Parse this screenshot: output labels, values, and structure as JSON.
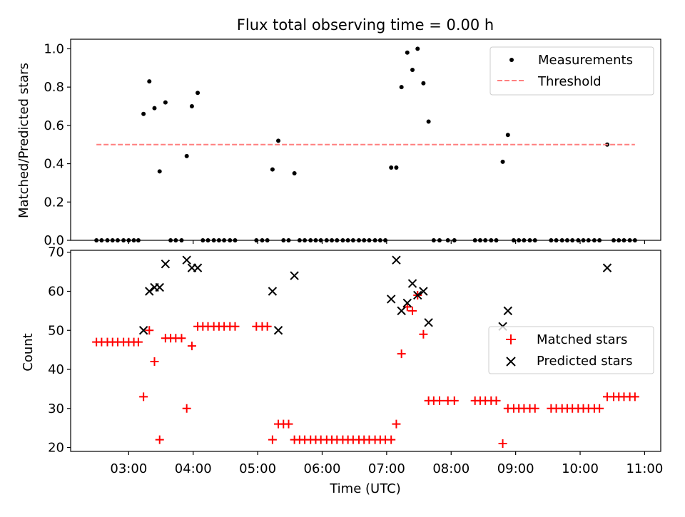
{
  "chart_data": [
    {
      "type": "scatter",
      "title": "Flux total observing time = 0.00 h",
      "xlabel": "",
      "ylabel": "Matched/Predicted stars",
      "ylim": [
        0,
        1.05
      ],
      "yticks": [
        0.0,
        0.2,
        0.4,
        0.6,
        0.8,
        1.0
      ],
      "ytick_labels": [
        "0.0",
        "0.2",
        "0.4",
        "0.6",
        "0.8",
        "1.0"
      ],
      "x_unit": "hours UTC",
      "xlim": [
        2.1,
        11.25
      ],
      "legend_placement": "top-right",
      "series": [
        {
          "name": "Measurements",
          "color": "#000000",
          "marker": "dot",
          "points": [
            [
              2.5,
              0
            ],
            [
              2.58,
              0
            ],
            [
              2.67,
              0
            ],
            [
              2.75,
              0
            ],
            [
              2.83,
              0
            ],
            [
              2.92,
              0
            ],
            [
              3.0,
              0
            ],
            [
              3.08,
              0
            ],
            [
              3.15,
              0
            ],
            [
              3.23,
              0.66
            ],
            [
              3.32,
              0.83
            ],
            [
              3.4,
              0.69
            ],
            [
              3.48,
              0.36
            ],
            [
              3.57,
              0.72
            ],
            [
              3.65,
              0
            ],
            [
              3.73,
              0
            ],
            [
              3.82,
              0
            ],
            [
              3.9,
              0.44
            ],
            [
              3.98,
              0.7
            ],
            [
              4.07,
              0.77
            ],
            [
              4.15,
              0
            ],
            [
              4.23,
              0
            ],
            [
              4.32,
              0
            ],
            [
              4.4,
              0
            ],
            [
              4.48,
              0
            ],
            [
              4.57,
              0
            ],
            [
              4.65,
              0
            ],
            [
              4.98,
              0
            ],
            [
              5.07,
              0
            ],
            [
              5.15,
              0
            ],
            [
              5.23,
              0.37
            ],
            [
              5.32,
              0.52
            ],
            [
              5.4,
              0
            ],
            [
              5.48,
              0
            ],
            [
              5.57,
              0.35
            ],
            [
              5.65,
              0
            ],
            [
              5.73,
              0
            ],
            [
              5.82,
              0
            ],
            [
              5.9,
              0
            ],
            [
              5.98,
              0
            ],
            [
              6.07,
              0
            ],
            [
              6.15,
              0
            ],
            [
              6.23,
              0
            ],
            [
              6.32,
              0
            ],
            [
              6.4,
              0
            ],
            [
              6.48,
              0
            ],
            [
              6.57,
              0
            ],
            [
              6.65,
              0
            ],
            [
              6.73,
              0
            ],
            [
              6.82,
              0
            ],
            [
              6.9,
              0
            ],
            [
              6.98,
              0
            ],
            [
              7.07,
              0.38
            ],
            [
              7.15,
              0.38
            ],
            [
              7.23,
              0.8
            ],
            [
              7.32,
              0.98
            ],
            [
              7.4,
              0.89
            ],
            [
              7.48,
              1.0
            ],
            [
              7.57,
              0.82
            ],
            [
              7.65,
              0.62
            ],
            [
              7.73,
              0
            ],
            [
              7.82,
              0
            ],
            [
              7.95,
              0
            ],
            [
              8.05,
              0
            ],
            [
              8.37,
              0
            ],
            [
              8.45,
              0
            ],
            [
              8.53,
              0
            ],
            [
              8.62,
              0
            ],
            [
              8.7,
              0
            ],
            [
              8.8,
              0.41
            ],
            [
              8.88,
              0.55
            ],
            [
              8.97,
              0
            ],
            [
              9.05,
              0
            ],
            [
              9.13,
              0
            ],
            [
              9.22,
              0
            ],
            [
              9.3,
              0
            ],
            [
              9.55,
              0
            ],
            [
              9.63,
              0
            ],
            [
              9.72,
              0
            ],
            [
              9.8,
              0
            ],
            [
              9.88,
              0
            ],
            [
              9.97,
              0
            ],
            [
              10.05,
              0
            ],
            [
              10.13,
              0
            ],
            [
              10.22,
              0
            ],
            [
              10.3,
              0
            ],
            [
              10.42,
              0.5
            ],
            [
              10.52,
              0
            ],
            [
              10.6,
              0
            ],
            [
              10.68,
              0
            ],
            [
              10.77,
              0
            ],
            [
              10.85,
              0
            ]
          ]
        },
        {
          "name": "Threshold",
          "color": "#ff7f7f",
          "style": "dashed",
          "points": [
            [
              2.5,
              0.5
            ],
            [
              10.85,
              0.5
            ]
          ]
        }
      ]
    },
    {
      "type": "scatter",
      "title": "",
      "xlabel": "Time (UTC)",
      "ylabel": "Count",
      "ylim": [
        19,
        70.5
      ],
      "yticks": [
        20,
        30,
        40,
        50,
        60,
        70
      ],
      "ytick_labels": [
        "20",
        "30",
        "40",
        "50",
        "60",
        "70"
      ],
      "x_unit": "hours UTC",
      "xlim": [
        2.1,
        11.25
      ],
      "xticks": [
        3,
        4,
        5,
        6,
        7,
        8,
        9,
        10,
        11
      ],
      "xtick_labels": [
        "03:00",
        "04:00",
        "05:00",
        "06:00",
        "07:00",
        "08:00",
        "09:00",
        "10:00",
        "11:00"
      ],
      "legend_placement": "center-right",
      "series": [
        {
          "name": "Matched stars",
          "color": "#ff0000",
          "marker": "plus",
          "points": [
            [
              2.5,
              47
            ],
            [
              2.58,
              47
            ],
            [
              2.67,
              47
            ],
            [
              2.75,
              47
            ],
            [
              2.83,
              47
            ],
            [
              2.92,
              47
            ],
            [
              3.0,
              47
            ],
            [
              3.08,
              47
            ],
            [
              3.15,
              47
            ],
            [
              3.23,
              33
            ],
            [
              3.32,
              50
            ],
            [
              3.4,
              42
            ],
            [
              3.48,
              22
            ],
            [
              3.57,
              48
            ],
            [
              3.65,
              48
            ],
            [
              3.73,
              48
            ],
            [
              3.82,
              48
            ],
            [
              3.9,
              30
            ],
            [
              3.98,
              46
            ],
            [
              4.07,
              51
            ],
            [
              4.15,
              51
            ],
            [
              4.23,
              51
            ],
            [
              4.32,
              51
            ],
            [
              4.4,
              51
            ],
            [
              4.48,
              51
            ],
            [
              4.57,
              51
            ],
            [
              4.65,
              51
            ],
            [
              4.98,
              51
            ],
            [
              5.07,
              51
            ],
            [
              5.15,
              51
            ],
            [
              5.23,
              22
            ],
            [
              5.32,
              26
            ],
            [
              5.4,
              26
            ],
            [
              5.48,
              26
            ],
            [
              5.57,
              22
            ],
            [
              5.65,
              22
            ],
            [
              5.73,
              22
            ],
            [
              5.82,
              22
            ],
            [
              5.9,
              22
            ],
            [
              5.98,
              22
            ],
            [
              6.07,
              22
            ],
            [
              6.15,
              22
            ],
            [
              6.23,
              22
            ],
            [
              6.32,
              22
            ],
            [
              6.4,
              22
            ],
            [
              6.48,
              22
            ],
            [
              6.57,
              22
            ],
            [
              6.65,
              22
            ],
            [
              6.73,
              22
            ],
            [
              6.82,
              22
            ],
            [
              6.9,
              22
            ],
            [
              6.98,
              22
            ],
            [
              7.07,
              22
            ],
            [
              7.15,
              26
            ],
            [
              7.23,
              44
            ],
            [
              7.32,
              56
            ],
            [
              7.4,
              55
            ],
            [
              7.48,
              59
            ],
            [
              7.57,
              49
            ],
            [
              7.65,
              32
            ],
            [
              7.73,
              32
            ],
            [
              7.82,
              32
            ],
            [
              7.95,
              32
            ],
            [
              8.05,
              32
            ],
            [
              8.37,
              32
            ],
            [
              8.45,
              32
            ],
            [
              8.53,
              32
            ],
            [
              8.62,
              32
            ],
            [
              8.7,
              32
            ],
            [
              8.8,
              21
            ],
            [
              8.88,
              30
            ],
            [
              8.97,
              30
            ],
            [
              9.05,
              30
            ],
            [
              9.13,
              30
            ],
            [
              9.22,
              30
            ],
            [
              9.3,
              30
            ],
            [
              9.55,
              30
            ],
            [
              9.63,
              30
            ],
            [
              9.72,
              30
            ],
            [
              9.8,
              30
            ],
            [
              9.88,
              30
            ],
            [
              9.97,
              30
            ],
            [
              10.05,
              30
            ],
            [
              10.13,
              30
            ],
            [
              10.22,
              30
            ],
            [
              10.3,
              30
            ],
            [
              10.42,
              33
            ],
            [
              10.52,
              33
            ],
            [
              10.6,
              33
            ],
            [
              10.68,
              33
            ],
            [
              10.77,
              33
            ],
            [
              10.85,
              33
            ]
          ]
        },
        {
          "name": "Predicted stars",
          "color": "#000000",
          "marker": "x",
          "points": [
            [
              3.23,
              50
            ],
            [
              3.32,
              60
            ],
            [
              3.4,
              61
            ],
            [
              3.48,
              61
            ],
            [
              3.57,
              67
            ],
            [
              3.9,
              68
            ],
            [
              3.98,
              66
            ],
            [
              4.07,
              66
            ],
            [
              5.23,
              60
            ],
            [
              5.32,
              50
            ],
            [
              5.57,
              64
            ],
            [
              7.07,
              58
            ],
            [
              7.15,
              68
            ],
            [
              7.23,
              55
            ],
            [
              7.32,
              57
            ],
            [
              7.4,
              62
            ],
            [
              7.48,
              59
            ],
            [
              7.57,
              60
            ],
            [
              7.65,
              52
            ],
            [
              8.8,
              51
            ],
            [
              8.88,
              55
            ],
            [
              10.42,
              66
            ]
          ]
        }
      ]
    }
  ]
}
